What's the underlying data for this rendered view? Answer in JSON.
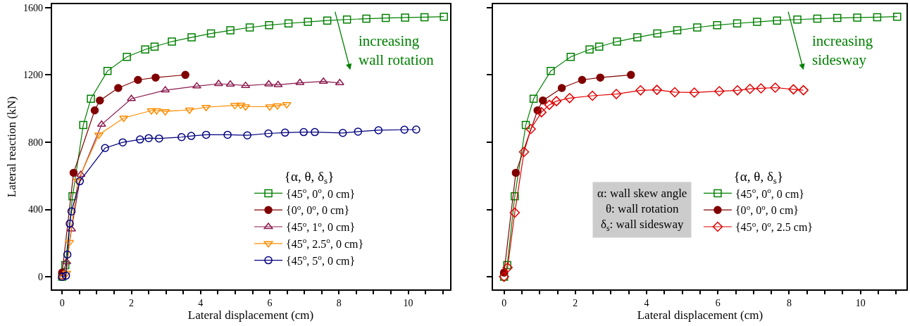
{
  "chart_data": [
    {
      "type": "line",
      "xlabel": "Lateral displacement (cm)",
      "ylabel": "Lateral reaction (kN)",
      "legend_title": "{α, θ, δ$_{s}$}",
      "legend": "right",
      "xlim": [
        -0.3,
        11.2
      ],
      "ylim": [
        -75,
        1620
      ],
      "xticks": [
        0,
        {
          "value": 0.5,
          "label": null
        },
        {
          "value": 1,
          "label": null
        },
        {
          "value": 1.5,
          "label": null
        },
        2,
        {
          "value": 2.5,
          "label": null
        },
        {
          "value": 3,
          "label": null
        },
        {
          "value": 3.5,
          "label": null
        },
        4,
        {
          "value": 4.5,
          "label": null
        },
        {
          "value": 5,
          "label": null
        },
        {
          "value": 5.5,
          "label": null
        },
        6,
        {
          "value": 6.5,
          "label": null
        },
        {
          "value": 7,
          "label": null
        },
        {
          "value": 7.5,
          "label": null
        },
        8,
        {
          "value": 8.5,
          "label": null
        },
        {
          "value": 9,
          "label": null
        },
        {
          "value": 9.5,
          "label": null
        },
        10,
        {
          "value": 10.5,
          "label": null
        },
        {
          "value": 11,
          "label": null
        }
      ],
      "yticks": [
        0,
        400,
        800,
        1200,
        1600
      ],
      "series": [
        {
          "name": "{45$^{o}$, 0$^{o}$, 0 cm}",
          "color": "#008000",
          "marker": "square",
          "x": [
            0,
            0.09,
            0.3,
            0.61,
            0.83,
            1.31,
            1.87,
            2.4,
            2.67,
            3.17,
            3.74,
            4.3,
            4.86,
            5.42,
            5.98,
            6.54,
            7.1,
            7.66,
            8.23,
            8.79,
            9.35,
            9.91,
            10.47,
            11.03
          ],
          "values": [
            0,
            69,
            478,
            902,
            1058,
            1223,
            1307,
            1351,
            1368,
            1398,
            1423,
            1446,
            1465,
            1482,
            1496,
            1506,
            1515,
            1523,
            1529,
            1534,
            1538,
            1541,
            1543,
            1546
          ]
        },
        {
          "name": "{0$^{o}$, 0$^{o}$, 0 cm}",
          "color": "#800000",
          "marker": "circle-filled",
          "x": [
            0,
            0.33,
            0.94,
            1.09,
            1.62,
            2.19,
            2.7,
            3.56
          ],
          "values": [
            25,
            618,
            989,
            1048,
            1122,
            1170,
            1184,
            1200
          ]
        },
        {
          "name": "{45$^{o}$, 1$^{o}$, 0 cm}",
          "color": "#8b1a4f",
          "marker": "triangle",
          "x": [
            0,
            0.13,
            0.27,
            0.54,
            1.14,
            2.0,
            2.98,
            3.89,
            4.52,
            4.86,
            5.3,
            5.97,
            6.24,
            6.87,
            7.55,
            8.02
          ],
          "values": [
            0,
            88,
            283,
            607,
            905,
            1058,
            1109,
            1133,
            1147,
            1144,
            1136,
            1145,
            1141,
            1153,
            1161,
            1152
          ]
        },
        {
          "name": "{45$^{o}$, 2.5$^{o}$, 0 cm}",
          "color": "#ff8c00",
          "marker": "triangle-down",
          "x": [
            0,
            0.13,
            0.21,
            0.45,
            1.06,
            1.78,
            2.58,
            2.73,
            2.98,
            3.68,
            4.16,
            4.99,
            5.16,
            5.3,
            6.0,
            6.22,
            6.49
          ],
          "values": [
            0,
            22,
            205,
            570,
            844,
            944,
            988,
            988,
            983,
            992,
            1008,
            1019,
            1021,
            1011,
            1011,
            1017,
            1025
          ]
        },
        {
          "name": "{45$^{o}$, 5$^{o}$, 0 cm}",
          "color": "#000080",
          "marker": "circle",
          "x": [
            0,
            0.11,
            0.15,
            0.22,
            0.27,
            0.51,
            1.24,
            1.75,
            2.25,
            2.5,
            2.8,
            3.45,
            3.73,
            4.16,
            4.78,
            5.35,
            5.96,
            6.44,
            6.98,
            7.3,
            8.11,
            8.55,
            9.14,
            9.89,
            10.23
          ],
          "values": [
            0,
            7,
            132,
            316,
            389,
            568,
            765,
            799,
            816,
            824,
            822,
            830,
            837,
            844,
            844,
            841,
            852,
            857,
            860,
            860,
            855,
            863,
            871,
            874,
            875
          ]
        }
      ],
      "annotations": [
        "increasing\nwall rotation"
      ]
    },
    {
      "type": "line",
      "xlabel": "Lateral displacement (cm)",
      "legend_title": "{α, θ, δ$_{s}$}",
      "legend": "right",
      "tick_labels": "x",
      "xlim": [
        -0.3,
        11.3
      ],
      "ylim": [
        -75,
        1620
      ],
      "xticks": [
        0,
        {
          "value": 0.5,
          "label": null
        },
        {
          "value": 1,
          "label": null
        },
        {
          "value": 1.5,
          "label": null
        },
        2,
        {
          "value": 2.5,
          "label": null
        },
        {
          "value": 3,
          "label": null
        },
        {
          "value": 3.5,
          "label": null
        },
        4,
        {
          "value": 4.5,
          "label": null
        },
        {
          "value": 5,
          "label": null
        },
        {
          "value": 5.5,
          "label": null
        },
        6,
        {
          "value": 6.5,
          "label": null
        },
        {
          "value": 7,
          "label": null
        },
        {
          "value": 7.5,
          "label": null
        },
        8,
        {
          "value": 8.5,
          "label": null
        },
        {
          "value": 9,
          "label": null
        },
        {
          "value": 9.5,
          "label": null
        },
        10,
        {
          "value": 10.5,
          "label": null
        },
        {
          "value": 11,
          "label": null
        }
      ],
      "yticks": [
        {
          "value": 0,
          "label": null
        },
        {
          "value": 400,
          "label": null
        },
        {
          "value": 800,
          "label": null
        },
        {
          "value": 1200,
          "label": null
        },
        {
          "value": 1600,
          "label": null
        }
      ],
      "series": [
        {
          "name": "{45$^{o}$, 0$^{o}$, 0 cm}",
          "color": "#008000",
          "marker": "square",
          "x": [
            0,
            0.09,
            0.3,
            0.61,
            0.83,
            1.31,
            1.87,
            2.4,
            2.67,
            3.17,
            3.74,
            4.3,
            4.86,
            5.42,
            5.98,
            6.54,
            7.1,
            7.66,
            8.23,
            8.79,
            9.35,
            9.91,
            10.47,
            11.03
          ],
          "values": [
            0,
            69,
            478,
            902,
            1058,
            1223,
            1307,
            1351,
            1368,
            1398,
            1423,
            1446,
            1465,
            1482,
            1496,
            1506,
            1515,
            1523,
            1529,
            1534,
            1538,
            1541,
            1543,
            1546
          ]
        },
        {
          "name": "{0$^{o}$, 0$^{o}$, 0 cm}",
          "color": "#800000",
          "marker": "circle-filled",
          "x": [
            0,
            0.33,
            0.94,
            1.09,
            1.62,
            2.19,
            2.7,
            3.56
          ],
          "values": [
            25,
            618,
            989,
            1048,
            1122,
            1170,
            1184,
            1200
          ]
        },
        {
          "name": "{45$^{o}$, 0$^{o}$, 2.5 cm}",
          "color": "#e00000",
          "marker": "diamond",
          "x": [
            0,
            0.1,
            0.3,
            0.56,
            0.75,
            1.05,
            1.27,
            1.47,
            1.84,
            2.48,
            3.15,
            3.83,
            4.29,
            4.79,
            5.34,
            6.04,
            6.55,
            6.9,
            7.21,
            7.61,
            8.12,
            8.4
          ],
          "values": [
            0,
            55,
            381,
            742,
            878,
            978,
            1022,
            1044,
            1062,
            1076,
            1086,
            1108,
            1111,
            1097,
            1095,
            1103,
            1108,
            1117,
            1120,
            1124,
            1114,
            1109
          ]
        }
      ],
      "annotations": [
        "increasing\nsidesway",
        "α: wall skew angle\nθ: wall rotation\nδ$_{s}$: wall sidesway"
      ]
    }
  ]
}
